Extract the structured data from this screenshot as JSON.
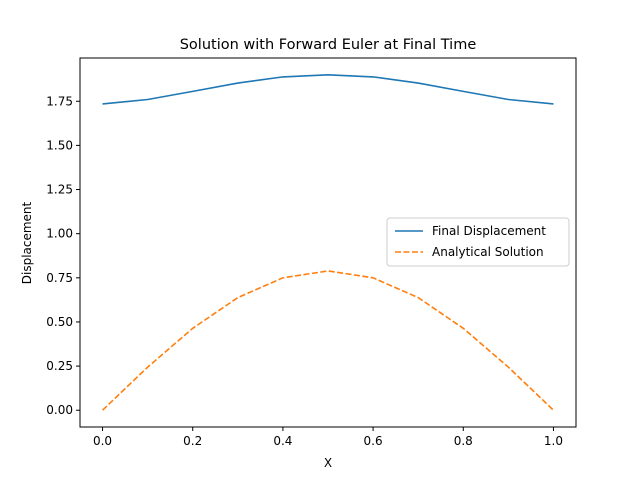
{
  "chart_data": {
    "type": "line",
    "title": "Solution with Forward Euler at Final Time",
    "xlabel": "X",
    "ylabel": "Displacement",
    "xlim": [
      -0.05,
      1.05
    ],
    "ylim": [
      -0.095,
      1.995
    ],
    "xticks": [
      0.0,
      0.2,
      0.4,
      0.6,
      0.8,
      1.0
    ],
    "xtick_labels": [
      "0.0",
      "0.2",
      "0.4",
      "0.6",
      "0.8",
      "1.0"
    ],
    "yticks": [
      0.0,
      0.25,
      0.5,
      0.75,
      1.0,
      1.25,
      1.5,
      1.75
    ],
    "ytick_labels": [
      "0.00",
      "0.25",
      "0.50",
      "0.75",
      "1.00",
      "1.25",
      "1.50",
      "1.75"
    ],
    "grid": false,
    "legend_position": "center-right",
    "x": [
      0.0,
      0.1,
      0.2,
      0.3,
      0.4,
      0.5,
      0.6,
      0.7,
      0.8,
      0.9,
      1.0
    ],
    "series": [
      {
        "name": "Final Displacement",
        "color": "#1f77b4",
        "style": "solid",
        "values": [
          1.735,
          1.76,
          1.806,
          1.853,
          1.888,
          1.9,
          1.888,
          1.853,
          1.806,
          1.76,
          1.735
        ]
      },
      {
        "name": "Analytical Solution",
        "color": "#ff7f0e",
        "style": "dashed",
        "values": [
          0.0,
          0.244,
          0.464,
          0.638,
          0.75,
          0.789,
          0.75,
          0.638,
          0.464,
          0.244,
          0.0
        ]
      }
    ]
  }
}
